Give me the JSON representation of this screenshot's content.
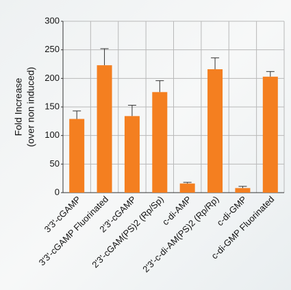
{
  "chart_data": {
    "type": "bar",
    "ylabel": [
      "Fold Increase",
      "(over non induced)"
    ],
    "categories": [
      "3'3'-cGAMP",
      "3'3'-cGAMP Fluorinated",
      "2'3'-cGAMP",
      "2'3'-cGAM(PS)2 (Rp/Sp)",
      "c-di-AMP",
      "2'3'-c-di-AM(PS)2 (Rp/Rp)",
      "c-di-GMP",
      "c-di-GMP Fluorinated"
    ],
    "values": [
      129,
      223,
      134,
      176,
      16,
      216,
      8,
      203
    ],
    "errors": [
      14,
      29,
      19,
      20,
      2,
      20,
      3,
      9
    ],
    "color": "#f47f20",
    "ylim": [
      0,
      300
    ],
    "yticks": [
      0,
      50,
      100,
      150,
      200,
      250,
      300
    ],
    "grid": true
  }
}
